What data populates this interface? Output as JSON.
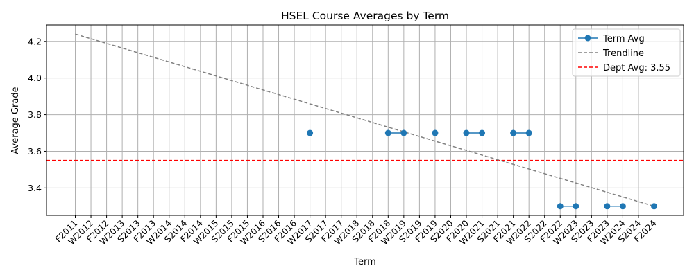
{
  "chart_data": {
    "type": "line",
    "title": "HSEL Course Averages by Term",
    "xlabel": "Term",
    "ylabel": "Average Grade",
    "categories": [
      "F2011",
      "W2012",
      "F2012",
      "W2013",
      "S2013",
      "F2013",
      "W2014",
      "S2014",
      "F2014",
      "W2015",
      "S2015",
      "F2015",
      "W2016",
      "S2016",
      "F2016",
      "W2017",
      "S2017",
      "F2017",
      "W2018",
      "S2018",
      "F2018",
      "W2019",
      "S2019",
      "F2019",
      "S2020",
      "F2020",
      "W2021",
      "S2021",
      "F2021",
      "W2022",
      "S2022",
      "F2022",
      "W2023",
      "S2023",
      "F2023",
      "W2024",
      "S2024",
      "F2024"
    ],
    "y_ticks": [
      "3.4",
      "3.6",
      "3.8",
      "4.0",
      "4.2"
    ],
    "ylim": [
      3.25,
      4.29
    ],
    "grid": true,
    "legend_position": "top-right",
    "colors": {
      "series": "#1f77b4",
      "trend": "#808080",
      "dept": "#ff0000"
    },
    "series": [
      {
        "name": "Term Avg",
        "values": [
          null,
          null,
          null,
          null,
          null,
          null,
          null,
          null,
          null,
          null,
          null,
          null,
          null,
          null,
          null,
          3.7,
          null,
          null,
          null,
          null,
          3.7,
          3.7,
          null,
          3.7,
          null,
          3.7,
          3.7,
          null,
          3.7,
          3.7,
          null,
          3.3,
          3.3,
          null,
          3.3,
          3.3,
          null,
          3.3
        ]
      }
    ],
    "trendline": {
      "name": "Trendline",
      "start": [
        "F2011",
        4.24
      ],
      "end": [
        "F2024",
        3.3
      ]
    },
    "reference_line": {
      "name": "Dept Avg: 3.55",
      "value": 3.55
    }
  }
}
